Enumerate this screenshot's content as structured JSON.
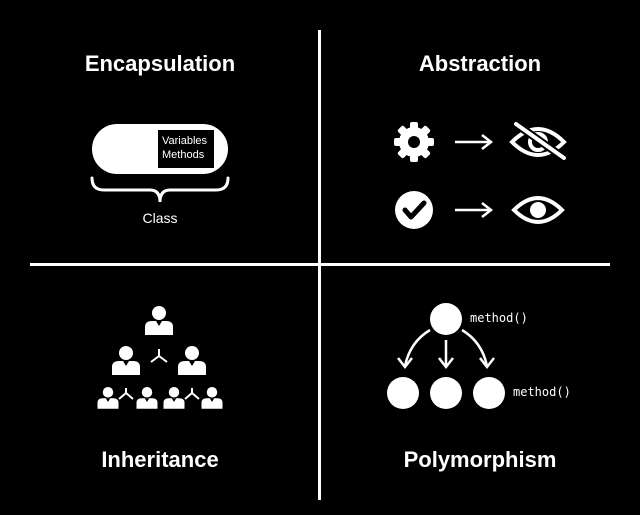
{
  "quadrants": {
    "encapsulation": {
      "title": "Encapsulation",
      "box_line1": "Variables",
      "box_line2": "Methods",
      "class_label": "Class"
    },
    "abstraction": {
      "title": "Abstraction",
      "icons": [
        "gear-icon",
        "arrow-right-icon",
        "eye-slash-icon",
        "check-circle-icon",
        "arrow-right-icon",
        "eye-icon"
      ]
    },
    "inheritance": {
      "title": "Inheritance",
      "icons": [
        "person-icon"
      ]
    },
    "polymorphism": {
      "title": "Polymorphism",
      "method_label_top": "method()",
      "method_label_bottom": "method()"
    }
  },
  "colors": {
    "background": "#000000",
    "foreground": "#ffffff"
  }
}
